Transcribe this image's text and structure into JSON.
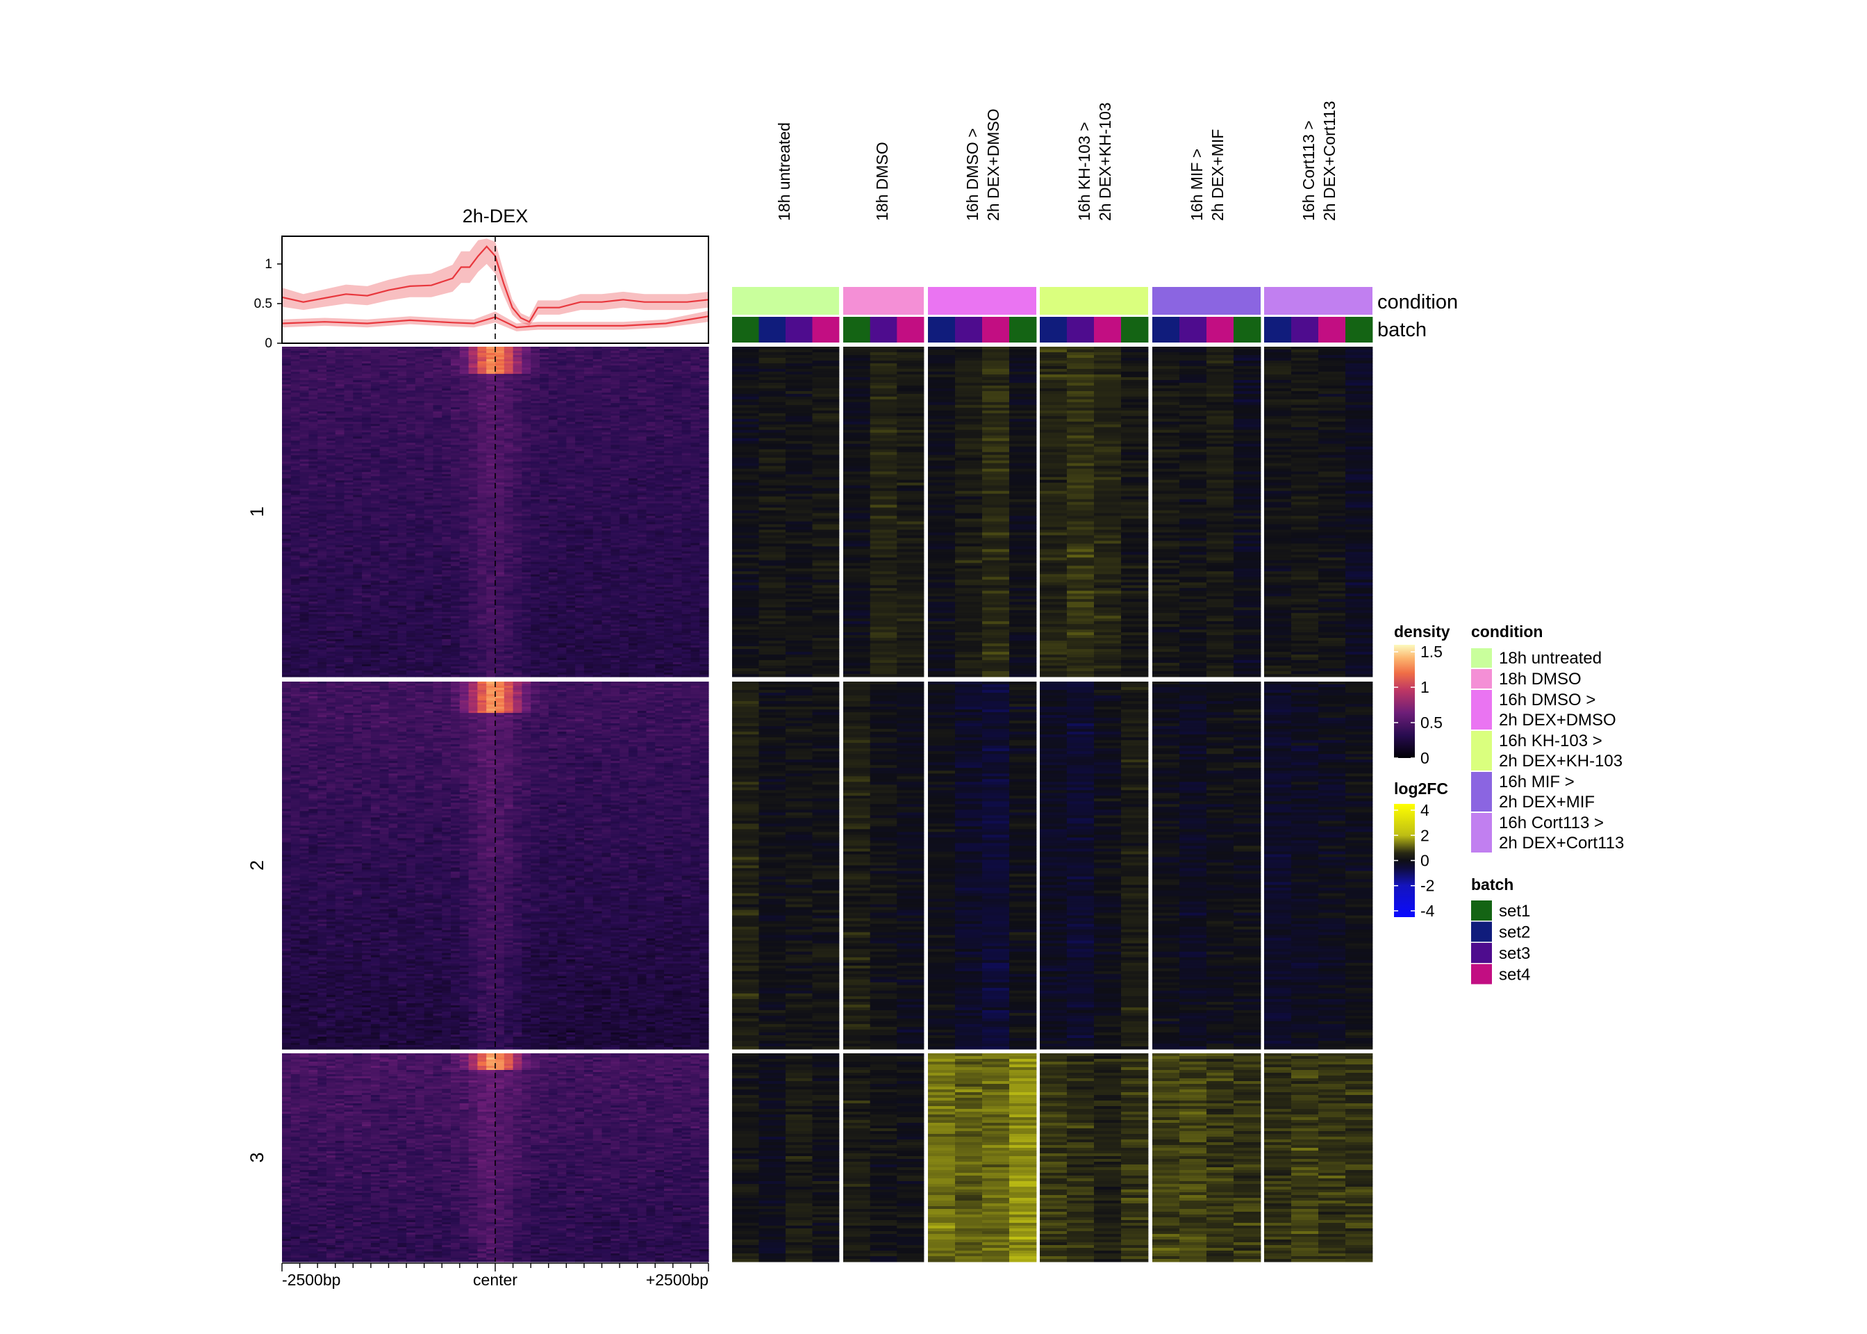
{
  "chart_data": {
    "type": "heatmap",
    "title": "2h-DEX",
    "profile": {
      "yticks": [
        "0",
        "0.5",
        "1"
      ],
      "ylim": [
        0,
        1.35
      ],
      "series": [
        {
          "color": "#e8373d",
          "x": [
            -2500,
            -2250,
            -2000,
            -1750,
            -1500,
            -1250,
            -1000,
            -750,
            -500,
            -400,
            -300,
            -200,
            -100,
            0,
            100,
            200,
            300,
            400,
            500,
            750,
            1000,
            1250,
            1500,
            1750,
            2000,
            2250,
            2500
          ],
          "mean": [
            0.58,
            0.52,
            0.57,
            0.62,
            0.6,
            0.67,
            0.72,
            0.73,
            0.82,
            0.96,
            0.96,
            1.1,
            1.22,
            1.1,
            0.75,
            0.45,
            0.32,
            0.27,
            0.45,
            0.45,
            0.52,
            0.52,
            0.55,
            0.52,
            0.52,
            0.52,
            0.55
          ],
          "lower": [
            0.46,
            0.42,
            0.46,
            0.5,
            0.48,
            0.54,
            0.58,
            0.58,
            0.65,
            0.76,
            0.76,
            0.9,
            1.0,
            0.88,
            0.6,
            0.36,
            0.26,
            0.22,
            0.36,
            0.36,
            0.42,
            0.42,
            0.45,
            0.42,
            0.42,
            0.42,
            0.45
          ],
          "upper": [
            0.7,
            0.62,
            0.68,
            0.74,
            0.72,
            0.8,
            0.86,
            0.88,
            0.99,
            1.16,
            1.16,
            1.3,
            1.32,
            1.28,
            0.9,
            0.55,
            0.38,
            0.33,
            0.54,
            0.54,
            0.62,
            0.62,
            0.65,
            0.62,
            0.62,
            0.62,
            0.65
          ]
        },
        {
          "color": "#e8373d",
          "x": [
            -2500,
            -2000,
            -1500,
            -1000,
            -500,
            -250,
            0,
            250,
            500,
            1000,
            1500,
            2000,
            2500
          ],
          "mean": [
            0.25,
            0.27,
            0.25,
            0.29,
            0.26,
            0.25,
            0.33,
            0.2,
            0.22,
            0.22,
            0.22,
            0.25,
            0.34
          ],
          "lower": [
            0.2,
            0.22,
            0.2,
            0.24,
            0.21,
            0.2,
            0.26,
            0.15,
            0.17,
            0.17,
            0.17,
            0.2,
            0.27
          ],
          "upper": [
            0.3,
            0.32,
            0.3,
            0.34,
            0.31,
            0.3,
            0.4,
            0.25,
            0.27,
            0.27,
            0.27,
            0.3,
            0.41
          ]
        }
      ]
    },
    "xaxis": {
      "labels": [
        "-2500bp",
        "center",
        "+2500bp"
      ]
    },
    "clusters": [
      {
        "label": "1",
        "rows": 240
      },
      {
        "label": "2",
        "rows": 270
      },
      {
        "label": "3",
        "rows": 150
      }
    ],
    "conditions": [
      {
        "label": "18h untreated",
        "color": "#c9ff9c",
        "batches": [
          "set1",
          "set2",
          "set3",
          "set4"
        ]
      },
      {
        "label": "18h DMSO",
        "color": "#f48fd6",
        "batches": [
          "set1",
          "set3",
          "set4"
        ]
      },
      {
        "label": "16h DMSO >\n2h DEX+DMSO",
        "color": "#ea74f2",
        "batches": [
          "set2",
          "set3",
          "set4",
          "set1"
        ]
      },
      {
        "label": "16h KH-103 >\n2h DEX+KH-103",
        "color": "#daff7e",
        "batches": [
          "set2",
          "set3",
          "set4",
          "set1"
        ]
      },
      {
        "label": "16h MIF  >\n2h DEX+MIF",
        "color": "#8b65e1",
        "batches": [
          "set2",
          "set3",
          "set4",
          "set1"
        ]
      },
      {
        "label": "16h Cort113 >\n2h DEX+Cort113",
        "color": "#c17ff0",
        "batches": [
          "set2",
          "set3",
          "set4",
          "set1"
        ]
      }
    ],
    "log2fc_means": [
      [
        [
          0.0,
          0.2,
          0.1,
          0.2
        ],
        [
          0.0,
          0.5,
          0.3
        ],
        [
          0.0,
          0.3,
          0.6,
          0.0
        ],
        [
          0.5,
          0.7,
          0.5,
          0.2
        ],
        [
          0.2,
          0.1,
          0.3,
          -0.1
        ],
        [
          0.1,
          0.2,
          0.1,
          -0.2
        ]
      ],
      [
        [
          0.4,
          0.0,
          0.1,
          0.1
        ],
        [
          0.4,
          0.1,
          -0.1
        ],
        [
          0.0,
          -0.3,
          -0.5,
          0.0
        ],
        [
          -0.2,
          -0.4,
          0.0,
          0.3
        ],
        [
          0.0,
          -0.2,
          0.0,
          0.0
        ],
        [
          -0.3,
          -0.2,
          -0.1,
          0.0
        ]
      ],
      [
        [
          0.2,
          -0.1,
          0.3,
          0.1
        ],
        [
          0.3,
          0.1,
          0.1
        ],
        [
          1.3,
          1.1,
          1.2,
          1.6
        ],
        [
          0.7,
          0.6,
          0.4,
          0.7
        ],
        [
          0.8,
          0.9,
          0.7,
          0.7
        ],
        [
          0.6,
          0.8,
          0.7,
          0.7
        ]
      ]
    ],
    "annotation_labels": {
      "condition": "condition",
      "batch": "batch"
    },
    "legends": {
      "density": {
        "title": "density",
        "ticks": [
          "1.5",
          "1",
          "0.5",
          "0"
        ],
        "range": [
          0,
          1.6
        ]
      },
      "log2fc": {
        "title": "log2FC",
        "ticks": [
          "4",
          "2",
          "0",
          "-2",
          "-4"
        ],
        "range": [
          -4.5,
          4.5
        ]
      },
      "condition": {
        "title": "condition",
        "items": [
          {
            "label": "18h untreated",
            "color": "#c9ff9c"
          },
          {
            "label": "18h DMSO",
            "color": "#f48fd6"
          },
          {
            "label": "16h DMSO >\n2h DEX+DMSO",
            "color": "#ea74f2"
          },
          {
            "label": "16h KH-103 >\n2h DEX+KH-103",
            "color": "#daff7e"
          },
          {
            "label": "16h MIF  >\n2h DEX+MIF",
            "color": "#8b65e1"
          },
          {
            "label": "16h Cort113 >\n2h DEX+Cort113",
            "color": "#c17ff0"
          }
        ]
      },
      "batch": {
        "title": "batch",
        "items": [
          {
            "label": "set1",
            "color": "#146414"
          },
          {
            "label": "set2",
            "color": "#101c7c"
          },
          {
            "label": "set3",
            "color": "#4e0c8e"
          },
          {
            "label": "set4",
            "color": "#c20e82"
          }
        ]
      }
    }
  }
}
